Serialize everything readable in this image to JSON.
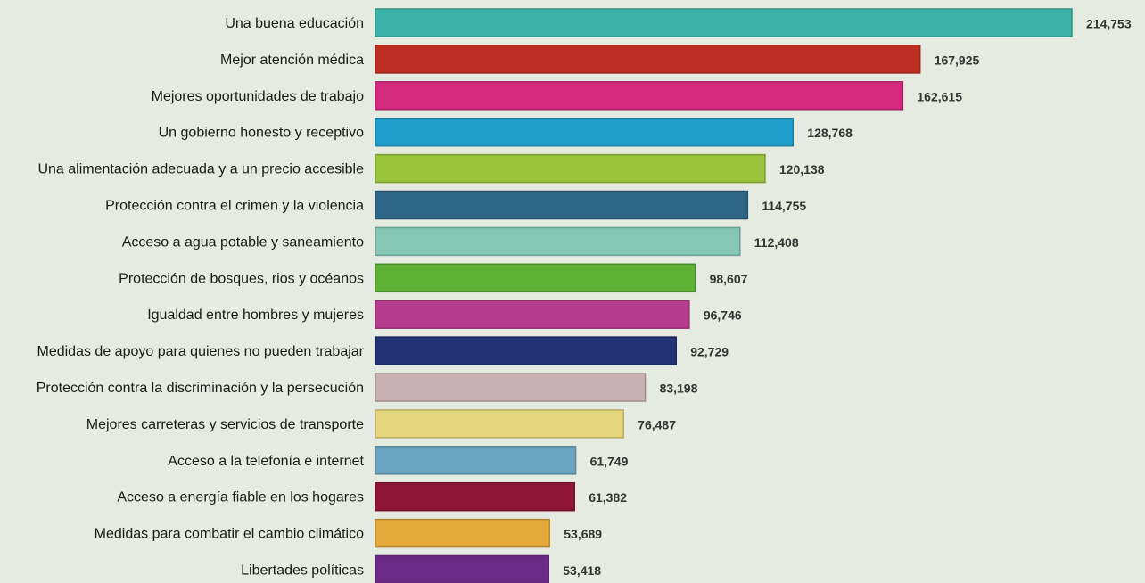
{
  "chart_data": {
    "type": "bar",
    "orientation": "horizontal",
    "categories": [
      "Una buena educación",
      "Mejor atención médica",
      "Mejores oportunidades de trabajo",
      "Un gobierno honesto y receptivo",
      "Una alimentación adecuada y a un precio accesible",
      "Protección contra el crimen y la violencia",
      "Acceso a agua potable y saneamiento",
      "Protección de bosques, rios y océanos",
      "Igualdad entre hombres y mujeres",
      "Medidas de apoyo para quienes no pueden trabajar",
      "Protección contra la discriminación y la persecución",
      "Mejores carreteras y servicios de transporte",
      "Acceso a la telefonía e internet",
      "Acceso a energía fiable en los hogares",
      "Medidas para combatir el cambio climático",
      "Libertades políticas"
    ],
    "values": [
      214753,
      167925,
      162615,
      128768,
      120138,
      114755,
      112408,
      98607,
      96746,
      92729,
      83198,
      76487,
      61749,
      61382,
      53689,
      53418
    ],
    "value_labels": [
      "214,753",
      "167,925",
      "162,615",
      "128,768",
      "120,138",
      "114,755",
      "112,408",
      "98,607",
      "96,746",
      "92,729",
      "83,198",
      "76,487",
      "61,749",
      "61,382",
      "53,689",
      "53,418"
    ],
    "colors": [
      "#3bb3a8",
      "#bf2e22",
      "#d42a7e",
      "#1f9fcc",
      "#99c43c",
      "#2e6687",
      "#85c6b4",
      "#5db236",
      "#b63c8c",
      "#223272",
      "#c8b0b4",
      "#e3d67c",
      "#6aa6c2",
      "#8f1537",
      "#e3a93a",
      "#6b2a86"
    ],
    "title": "",
    "xlabel": "",
    "ylabel": "",
    "xlim": [
      0,
      214753
    ],
    "grid": false,
    "legend": "none"
  }
}
